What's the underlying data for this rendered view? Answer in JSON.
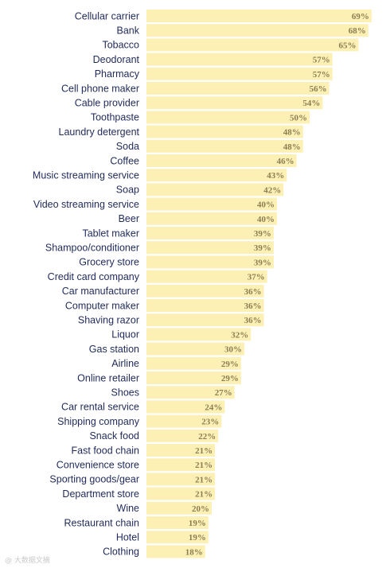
{
  "chart_data": {
    "type": "bar",
    "orientation": "horizontal",
    "categories": [
      "Cellular carrier",
      "Bank",
      "Tobacco",
      "Deodorant",
      "Pharmacy",
      "Cell phone maker",
      "Cable provider",
      "Toothpaste",
      "Laundry detergent",
      "Soda",
      "Coffee",
      "Music streaming service",
      "Soap",
      "Video streaming service",
      "Beer",
      "Tablet maker",
      "Shampoo/conditioner",
      "Grocery store",
      "Credit card company",
      "Car manufacturer",
      "Computer maker",
      "Shaving razor",
      "Liquor",
      "Gas station",
      "Airline",
      "Online retailer",
      "Shoes",
      "Car rental service",
      "Shipping company",
      "Snack food",
      "Fast food chain",
      "Convenience store",
      "Sporting goods/gear",
      "Department store",
      "Wine",
      "Restaurant chain",
      "Hotel",
      "Clothing"
    ],
    "values": [
      69,
      68,
      65,
      57,
      57,
      56,
      54,
      50,
      48,
      48,
      46,
      43,
      42,
      40,
      40,
      39,
      39,
      39,
      37,
      36,
      36,
      36,
      32,
      30,
      29,
      29,
      27,
      24,
      23,
      22,
      21,
      21,
      21,
      21,
      20,
      19,
      19,
      18
    ],
    "value_labels": [
      "69%",
      "68%",
      "65%",
      "57%",
      "57%",
      "56%",
      "54%",
      "50%",
      "48%",
      "48%",
      "46%",
      "43%",
      "42%",
      "40%",
      "40%",
      "39%",
      "39%",
      "39%",
      "37%",
      "36%",
      "36%",
      "36%",
      "32%",
      "30%",
      "29%",
      "29%",
      "27%",
      "24%",
      "23%",
      "22%",
      "21%",
      "21%",
      "21%",
      "21%",
      "20%",
      "19%",
      "19%",
      "18%"
    ],
    "unit": "%",
    "title": "",
    "xlabel": "",
    "ylabel": "",
    "grid": false,
    "bar_color": "#fdf0b5",
    "label_color": "#1f2a5a",
    "value_label_color": "#8a7f52"
  },
  "watermark": "@ 大数据文摘"
}
